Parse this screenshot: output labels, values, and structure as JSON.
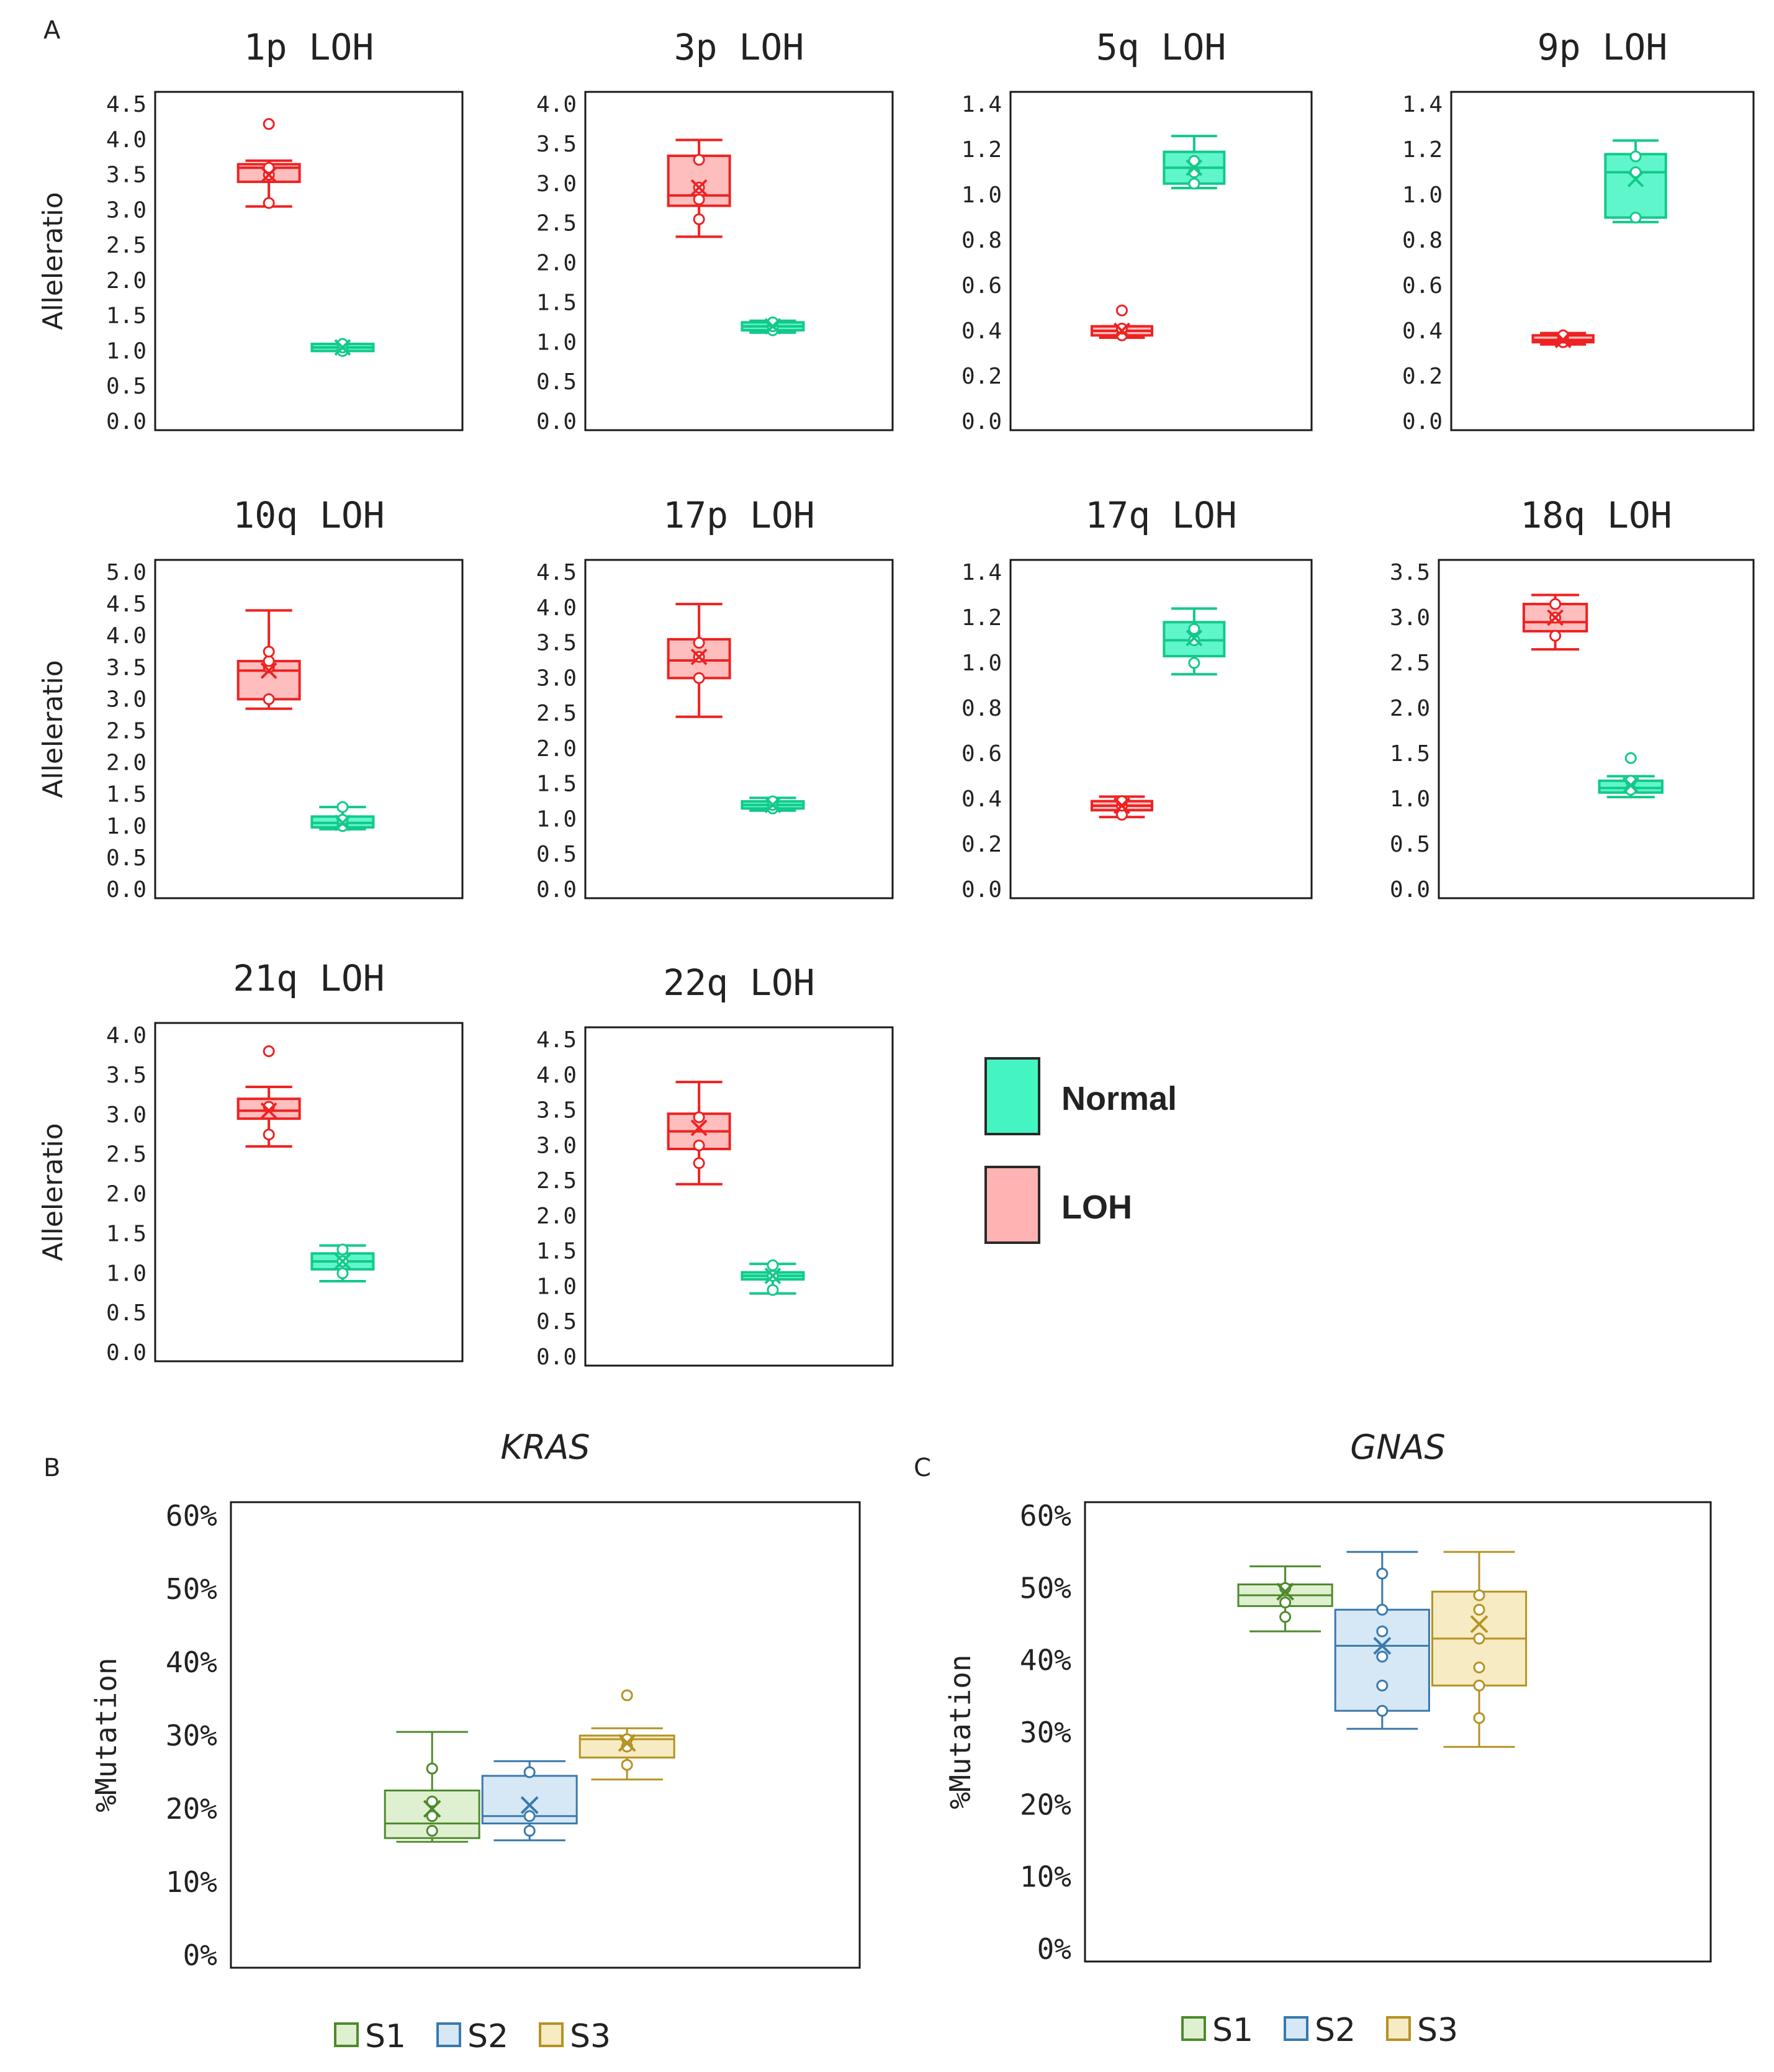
{
  "panel_labels": {
    "a": "A",
    "b": "B",
    "c": "C"
  },
  "colors": {
    "loh": "#ee2222",
    "loh_fill": "#ffb3b3",
    "normal": "#12c98a",
    "normal_fill": "#44f5c2",
    "s1": "#4e8a2e",
    "s1_fill": "#dff0d0",
    "s2": "#3a79ac",
    "s2_fill": "#d6e8f6",
    "s3": "#b59222",
    "s3_fill": "#f7ebc4"
  },
  "legend_a": {
    "normal": "Normal",
    "loh": "LOH"
  },
  "chart_data": [
    {
      "type": "box",
      "title": "1p LOH",
      "ylabel": "Alleleratio",
      "ylim": [
        0,
        4.5
      ],
      "yticks": [
        "0.0",
        "0.5",
        "1.0",
        "1.5",
        "2.0",
        "2.5",
        "3.0",
        "3.5",
        "4.0",
        "4.5"
      ],
      "series": [
        {
          "name": "LOH",
          "min": 3.05,
          "q1": 3.4,
          "median": 3.6,
          "q3": 3.65,
          "max": 3.7,
          "mean": 3.5,
          "points": [
            3.1,
            3.5,
            3.6,
            4.22
          ]
        },
        {
          "name": "Normal",
          "min": 1.0,
          "q1": 1.0,
          "median": 1.05,
          "q3": 1.1,
          "max": 1.1,
          "mean": 1.05,
          "points": [
            1.0,
            1.05,
            1.1
          ]
        }
      ]
    },
    {
      "type": "box",
      "title": "3p LOH",
      "ylabel": "",
      "ylim": [
        0,
        4.0
      ],
      "yticks": [
        "0.0",
        "0.5",
        "1.0",
        "1.5",
        "2.0",
        "2.5",
        "3.0",
        "3.5",
        "4.0"
      ],
      "series": [
        {
          "name": "LOH",
          "min": 2.33,
          "q1": 2.72,
          "median": 2.85,
          "q3": 3.35,
          "max": 3.55,
          "mean": 2.95,
          "points": [
            2.55,
            2.8,
            2.95,
            3.3
          ]
        },
        {
          "name": "Normal",
          "min": 1.12,
          "q1": 1.15,
          "median": 1.2,
          "q3": 1.25,
          "max": 1.27,
          "mean": 1.2,
          "points": [
            1.15,
            1.2,
            1.25
          ]
        }
      ]
    },
    {
      "type": "box",
      "title": "5q LOH",
      "ylabel": "",
      "ylim": [
        0,
        1.4
      ],
      "yticks": [
        "0.0",
        "0.2",
        "0.4",
        "0.6",
        "0.8",
        "1.0",
        "1.2",
        "1.4"
      ],
      "series": [
        {
          "name": "LOH",
          "min": 0.37,
          "q1": 0.38,
          "median": 0.4,
          "q3": 0.42,
          "max": 0.42,
          "mean": 0.4,
          "points": [
            0.38,
            0.41,
            0.49
          ]
        },
        {
          "name": "Normal",
          "min": 1.03,
          "q1": 1.05,
          "median": 1.12,
          "q3": 1.19,
          "max": 1.26,
          "mean": 1.12,
          "points": [
            1.05,
            1.1,
            1.15
          ]
        }
      ]
    },
    {
      "type": "box",
      "title": "9p LOH",
      "ylabel": "",
      "ylim": [
        0,
        1.4
      ],
      "yticks": [
        "0.0",
        "0.2",
        "0.4",
        "0.6",
        "0.8",
        "1.0",
        "1.2",
        "1.4"
      ],
      "series": [
        {
          "name": "LOH",
          "min": 0.34,
          "q1": 0.35,
          "median": 0.36,
          "q3": 0.38,
          "max": 0.39,
          "mean": 0.36,
          "points": [
            0.35,
            0.37,
            0.38
          ]
        },
        {
          "name": "Normal",
          "min": 0.88,
          "q1": 0.9,
          "median": 1.1,
          "q3": 1.18,
          "max": 1.24,
          "mean": 1.07,
          "points": [
            0.9,
            1.1,
            1.17
          ]
        }
      ]
    },
    {
      "type": "box",
      "title": "10q LOH",
      "ylabel": "Alleleratio",
      "ylim": [
        0,
        5.0
      ],
      "yticks": [
        "0.0",
        "0.5",
        "1.0",
        "1.5",
        "2.0",
        "2.5",
        "3.0",
        "3.5",
        "4.0",
        "4.5",
        "5.0"
      ],
      "series": [
        {
          "name": "LOH",
          "min": 2.85,
          "q1": 3.0,
          "median": 3.45,
          "q3": 3.6,
          "max": 4.4,
          "mean": 3.45,
          "points": [
            3.0,
            3.5,
            3.6,
            3.75
          ]
        },
        {
          "name": "Normal",
          "min": 0.95,
          "q1": 0.98,
          "median": 1.05,
          "q3": 1.15,
          "max": 1.3,
          "mean": 1.05,
          "points": [
            1.0,
            1.1,
            1.3
          ]
        }
      ]
    },
    {
      "type": "box",
      "title": "17p LOH",
      "ylabel": "",
      "ylim": [
        0,
        4.5
      ],
      "yticks": [
        "0.0",
        "0.5",
        "1.0",
        "1.5",
        "2.0",
        "2.5",
        "3.0",
        "3.5",
        "4.0",
        "4.5"
      ],
      "series": [
        {
          "name": "LOH",
          "min": 2.45,
          "q1": 3.0,
          "median": 3.25,
          "q3": 3.55,
          "max": 4.05,
          "mean": 3.3,
          "points": [
            3.0,
            3.3,
            3.5
          ]
        },
        {
          "name": "Normal",
          "min": 1.12,
          "q1": 1.15,
          "median": 1.2,
          "q3": 1.25,
          "max": 1.3,
          "mean": 1.2,
          "points": [
            1.15,
            1.2,
            1.25
          ]
        }
      ]
    },
    {
      "type": "box",
      "title": "17q LOH",
      "ylabel": "",
      "ylim": [
        0,
        1.4
      ],
      "yticks": [
        "0.0",
        "0.2",
        "0.4",
        "0.6",
        "0.8",
        "1.0",
        "1.2",
        "1.4"
      ],
      "series": [
        {
          "name": "LOH",
          "min": 0.32,
          "q1": 0.35,
          "median": 0.37,
          "q3": 0.39,
          "max": 0.41,
          "mean": 0.37,
          "points": [
            0.33,
            0.37,
            0.39
          ]
        },
        {
          "name": "Normal",
          "min": 0.95,
          "q1": 1.03,
          "median": 1.1,
          "q3": 1.18,
          "max": 1.24,
          "mean": 1.11,
          "points": [
            1.0,
            1.1,
            1.15
          ]
        }
      ]
    },
    {
      "type": "box",
      "title": "18q LOH",
      "ylabel": "",
      "ylim": [
        0,
        3.5
      ],
      "yticks": [
        "0.0",
        "0.5",
        "1.0",
        "1.5",
        "2.0",
        "2.5",
        "3.0",
        "3.5"
      ],
      "series": [
        {
          "name": "LOH",
          "min": 2.65,
          "q1": 2.85,
          "median": 2.95,
          "q3": 3.15,
          "max": 3.25,
          "mean": 3.0,
          "points": [
            2.8,
            3.0,
            3.15
          ]
        },
        {
          "name": "Normal",
          "min": 1.02,
          "q1": 1.07,
          "median": 1.12,
          "q3": 1.2,
          "max": 1.25,
          "mean": 1.15,
          "points": [
            1.1,
            1.2,
            1.45
          ]
        }
      ]
    },
    {
      "type": "box",
      "title": "21q LOH",
      "ylabel": "Alleleratio",
      "ylim": [
        0,
        4.0
      ],
      "yticks": [
        "0.0",
        "0.5",
        "1.0",
        "1.5",
        "2.0",
        "2.5",
        "3.0",
        "3.5",
        "4.0"
      ],
      "series": [
        {
          "name": "LOH",
          "min": 2.6,
          "q1": 2.95,
          "median": 3.05,
          "q3": 3.2,
          "max": 3.35,
          "mean": 3.05,
          "points": [
            2.75,
            3.1,
            3.8
          ]
        },
        {
          "name": "Normal",
          "min": 0.9,
          "q1": 1.05,
          "median": 1.15,
          "q3": 1.25,
          "max": 1.35,
          "mean": 1.15,
          "points": [
            1.0,
            1.15,
            1.3
          ]
        }
      ]
    },
    {
      "type": "box",
      "title": "22q LOH",
      "ylabel": "",
      "ylim": [
        0,
        4.5
      ],
      "yticks": [
        "0.0",
        "0.5",
        "1.0",
        "1.5",
        "2.0",
        "2.5",
        "3.0",
        "3.5",
        "4.0",
        "4.5"
      ],
      "series": [
        {
          "name": "LOH",
          "min": 2.45,
          "q1": 2.95,
          "median": 3.2,
          "q3": 3.45,
          "max": 3.9,
          "mean": 3.25,
          "points": [
            2.75,
            3.0,
            3.4
          ]
        },
        {
          "name": "Normal",
          "min": 0.9,
          "q1": 1.1,
          "median": 1.15,
          "q3": 1.2,
          "max": 1.32,
          "mean": 1.15,
          "points": [
            0.95,
            1.15,
            1.3
          ]
        }
      ]
    },
    {
      "type": "box",
      "title": "KRAS",
      "ylabel": "%Mutation",
      "ylim": [
        0,
        60
      ],
      "yticks": [
        "0%",
        "10%",
        "20%",
        "30%",
        "40%",
        "50%",
        "60%"
      ],
      "legend": [
        "S1",
        "S2",
        "S3"
      ],
      "series": [
        {
          "name": "S1",
          "min": 15.5,
          "q1": 16,
          "median": 18,
          "q3": 22.5,
          "max": 30.5,
          "mean": 20,
          "points": [
            17,
            19,
            21,
            25.5
          ]
        },
        {
          "name": "S2",
          "min": 15.7,
          "q1": 18,
          "median": 19,
          "q3": 24.5,
          "max": 26.5,
          "mean": 20.5,
          "points": [
            17,
            19,
            25
          ]
        },
        {
          "name": "S3",
          "min": 24,
          "q1": 27,
          "median": 29.5,
          "q3": 30,
          "max": 31,
          "mean": 29,
          "points": [
            26,
            28.5,
            29.5,
            35.5
          ]
        }
      ]
    },
    {
      "type": "box",
      "title": "GNAS",
      "ylabel": "%Mutation",
      "ylim": [
        0,
        60
      ],
      "yticks": [
        "0%",
        "10%",
        "20%",
        "30%",
        "40%",
        "50%",
        "60%"
      ],
      "legend": [
        "S1",
        "S2",
        "S3"
      ],
      "series": [
        {
          "name": "S1",
          "min": 44,
          "q1": 47.5,
          "median": 49,
          "q3": 50.5,
          "max": 53,
          "mean": 49.5,
          "points": [
            46,
            48,
            50
          ]
        },
        {
          "name": "S2",
          "min": 30.5,
          "q1": 33,
          "median": 42,
          "q3": 47,
          "max": 55,
          "mean": 42,
          "points": [
            33,
            36.5,
            40.5,
            44,
            47,
            52
          ]
        },
        {
          "name": "S3",
          "min": 28,
          "q1": 36.5,
          "median": 43,
          "q3": 49.5,
          "max": 55,
          "mean": 45,
          "points": [
            32,
            36.5,
            39,
            43,
            47,
            49
          ]
        }
      ]
    }
  ]
}
